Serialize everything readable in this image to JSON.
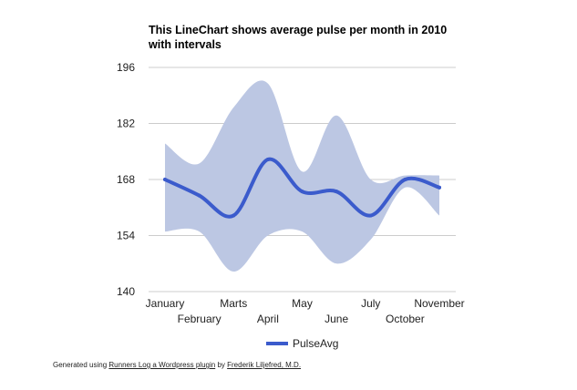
{
  "chart_data": {
    "type": "line",
    "title_lines": [
      "This LineChart shows average pulse per month in 2010",
      "with intervals"
    ],
    "categories": [
      "January",
      "February",
      "Marts",
      "April",
      "May",
      "June",
      "July",
      "October",
      "November"
    ],
    "series": [
      {
        "name": "PulseAvg",
        "values": [
          168,
          164,
          159,
          173,
          165,
          165,
          159,
          168,
          166
        ]
      }
    ],
    "interval_lower": [
      155,
      155,
      145,
      154,
      155,
      147,
      153,
      166,
      159
    ],
    "interval_upper": [
      177,
      172,
      186,
      192,
      170,
      184,
      168,
      169,
      169
    ],
    "yticks": [
      140,
      154,
      168,
      182,
      196
    ],
    "ylim": [
      140,
      196
    ],
    "grid": true,
    "legend_position": "bottom",
    "colors": {
      "line": "#3b5bcc",
      "interval": "#bcc7e3",
      "grid": "#cccccc"
    }
  },
  "footer": {
    "prefix": "Generated using",
    "plugin_link": "Runners Log a Wordpress plugin",
    "by": "by",
    "author_link": "Frederik Liljefred, M.D."
  }
}
